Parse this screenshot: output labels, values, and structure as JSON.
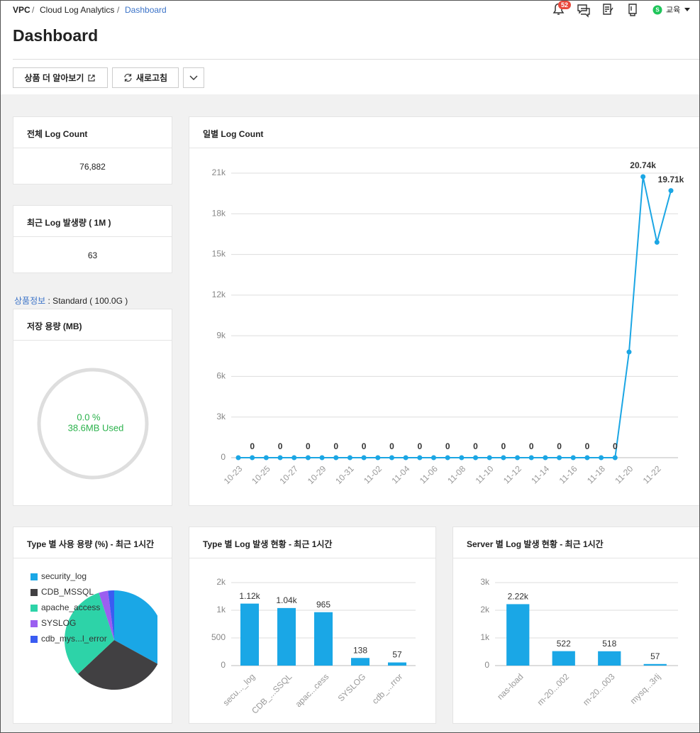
{
  "breadcrumb": [
    "VPC",
    "Cloud Log Analytics",
    "Dashboard"
  ],
  "notification_count": "52",
  "user": {
    "avatar": "S",
    "name": "교육"
  },
  "page_title": "Dashboard",
  "buttons": [
    "상품 더 알아보기",
    "새로고침"
  ],
  "summary_cards": [
    {
      "title": "전체 Log Count",
      "value": "76,882"
    },
    {
      "title": "최근 Log 발생량 ( 1M )",
      "value": "63"
    }
  ],
  "product_info": {
    "link": "상품정보",
    "text": ": Standard ( 100.0G )"
  },
  "storage": {
    "title": "저장 용량 (MB)",
    "percent": "0.0 %",
    "used": "38.6MB Used"
  },
  "chart_data": [
    {
      "type": "line",
      "title": "일별 Log Count",
      "color": "#1ba6e4",
      "categories": [
        "10-23",
        null,
        "10-25",
        null,
        "10-27",
        null,
        "10-29",
        null,
        "10-31",
        null,
        "11-02",
        null,
        "11-04",
        null,
        "11-06",
        null,
        "11-08",
        null,
        "11-10",
        null,
        "11-12",
        null,
        "11-14",
        null,
        "11-16",
        null,
        "11-18",
        null,
        "11-20",
        null,
        "11-22",
        null
      ],
      "values": [
        0,
        0,
        0,
        0,
        0,
        0,
        0,
        0,
        0,
        0,
        0,
        0,
        0,
        0,
        0,
        0,
        0,
        0,
        0,
        0,
        0,
        0,
        0,
        0,
        0,
        0,
        0,
        0,
        7800,
        20740,
        15900,
        19710
      ],
      "value_labels": [
        null,
        "0",
        null,
        "0",
        null,
        "0",
        null,
        "0",
        null,
        "0",
        null,
        "0",
        null,
        "0",
        null,
        "0",
        null,
        "0",
        null,
        "0",
        null,
        "0",
        null,
        "0",
        null,
        "0",
        null,
        "0",
        null,
        "20.74k",
        null,
        "19.71k"
      ],
      "ylim": [
        0,
        21000
      ],
      "yticks": [
        0,
        {
          "value": 3000,
          "label": "3k"
        },
        {
          "value": 6000,
          "label": "6k"
        },
        {
          "value": 9000,
          "label": "9k"
        },
        {
          "value": 12000,
          "label": "12k"
        },
        {
          "value": 15000,
          "label": "15k"
        },
        {
          "value": 18000,
          "label": "18k"
        },
        {
          "value": 21000,
          "label": "21k"
        }
      ],
      "grid": true
    },
    {
      "type": "pie",
      "title": "Type 별 사용 용량 (%) - 최근 1시간",
      "categories": [
        "security_log",
        "CDB_MSSQL",
        "apache_access",
        "SYSLOG",
        "cdb_mys...l_error"
      ],
      "values": [
        33,
        30,
        32,
        3,
        2
      ],
      "colors": [
        "#1aa7e6",
        "#414042",
        "#2dd3a8",
        "#9b5ff0",
        "#3a5cf2"
      ]
    },
    {
      "type": "bar",
      "title": "Type 별 Log 발생 현황 - 최근 1시간",
      "color": "#1aa7e6",
      "categories": [
        "secu..._log",
        "CDB_...SSQL",
        "apac...cess",
        "SYSLOG",
        "cdb_...rror"
      ],
      "values": [
        1120,
        1040,
        965,
        138,
        57
      ],
      "value_labels": [
        "1.12k",
        "1.04k",
        "965",
        "138",
        "57"
      ],
      "ylim": [
        0,
        1500
      ],
      "yticks": [
        0,
        500,
        {
          "value": 1000,
          "label": "1k"
        },
        {
          "value": 1500,
          "label": "2k"
        }
      ],
      "grid": true
    },
    {
      "type": "bar",
      "title": "Server 별 Log 발생 현황 - 최근 1시간",
      "color": "#1aa7e6",
      "categories": [
        "nas-load",
        "m-20...002",
        "m-20...003",
        "mysq...3rlj"
      ],
      "values": [
        2220,
        522,
        518,
        57
      ],
      "value_labels": [
        "2.22k",
        "522",
        "518",
        "57"
      ],
      "ylim": [
        0,
        3000
      ],
      "yticks": [
        0,
        {
          "value": 1000,
          "label": "1k"
        },
        {
          "value": 2000,
          "label": "2k"
        },
        {
          "value": 3000,
          "label": "3k"
        }
      ],
      "grid": true
    }
  ]
}
